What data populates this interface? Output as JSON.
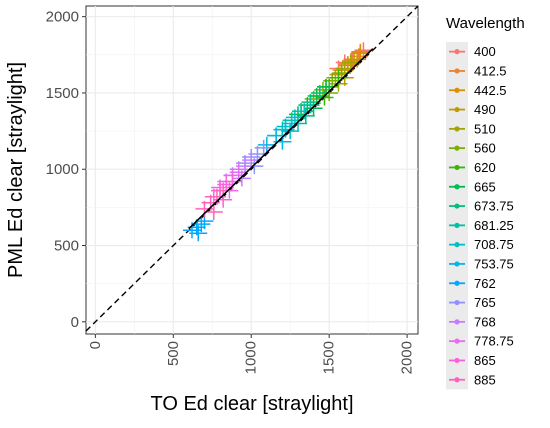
{
  "chart_data": {
    "type": "scatter",
    "xlabel": "TO Ed clear [straylight]",
    "ylabel": "PML Ed  clear [straylight]",
    "xlim": [
      -60,
      2070
    ],
    "ylim": [
      -80,
      2070
    ],
    "x_ticks": [
      "0",
      "500",
      "1000",
      "1500",
      "2000"
    ],
    "y_ticks": [
      "0",
      "500",
      "1000",
      "1500",
      "2000"
    ],
    "x_tick_values": [
      0,
      500,
      1000,
      1500,
      2000
    ],
    "y_tick_values": [
      0,
      500,
      1000,
      1500,
      2000
    ],
    "grid": true,
    "legend_position": "right",
    "legend_title": "Wavelength",
    "reference_line": {
      "style": "dashed",
      "x": [
        -60,
        2070
      ],
      "y": [
        -60,
        2070
      ]
    },
    "fit_line": {
      "style": "solid",
      "x": [
        600,
        1780
      ],
      "y": [
        610,
        1790
      ]
    },
    "series": [
      {
        "name": "400",
        "color": "#F8766D",
        "points": [
          [
            1600,
            1700
          ],
          [
            1650,
            1720
          ],
          [
            1700,
            1760
          ],
          [
            1560,
            1660
          ],
          [
            1720,
            1780
          ]
        ]
      },
      {
        "name": "412.5",
        "color": "#EA8331",
        "points": [
          [
            1580,
            1650
          ],
          [
            1640,
            1710
          ],
          [
            1690,
            1740
          ],
          [
            1620,
            1690
          ],
          [
            1700,
            1770
          ]
        ]
      },
      {
        "name": "442.5",
        "color": "#D89000",
        "points": [
          [
            1560,
            1620
          ],
          [
            1620,
            1680
          ],
          [
            1680,
            1720
          ],
          [
            1700,
            1760
          ],
          [
            1600,
            1650
          ]
        ]
      },
      {
        "name": "490",
        "color": "#C09B00",
        "points": [
          [
            1520,
            1580
          ],
          [
            1580,
            1630
          ],
          [
            1640,
            1700
          ],
          [
            1660,
            1720
          ],
          [
            1600,
            1600
          ]
        ]
      },
      {
        "name": "510",
        "color": "#A3A500",
        "points": [
          [
            1480,
            1540
          ],
          [
            1540,
            1600
          ],
          [
            1600,
            1660
          ],
          [
            1640,
            1700
          ],
          [
            1560,
            1560
          ]
        ]
      },
      {
        "name": "560",
        "color": "#7CAE00",
        "points": [
          [
            1400,
            1460
          ],
          [
            1460,
            1520
          ],
          [
            1520,
            1580
          ],
          [
            1580,
            1630
          ],
          [
            1500,
            1500
          ]
        ]
      },
      {
        "name": "620",
        "color": "#39B600",
        "points": [
          [
            1380,
            1420
          ],
          [
            1440,
            1480
          ],
          [
            1500,
            1540
          ],
          [
            1560,
            1600
          ],
          [
            1470,
            1470
          ]
        ]
      },
      {
        "name": "665",
        "color": "#00BB4E",
        "points": [
          [
            1300,
            1360
          ],
          [
            1360,
            1420
          ],
          [
            1420,
            1480
          ],
          [
            1480,
            1540
          ],
          [
            1400,
            1400
          ]
        ]
      },
      {
        "name": "673.75",
        "color": "#00BF7D",
        "points": [
          [
            1260,
            1320
          ],
          [
            1320,
            1380
          ],
          [
            1380,
            1440
          ],
          [
            1440,
            1500
          ],
          [
            1350,
            1350
          ]
        ]
      },
      {
        "name": "681.25",
        "color": "#00C1A3",
        "points": [
          [
            1200,
            1260
          ],
          [
            1260,
            1320
          ],
          [
            1320,
            1380
          ],
          [
            1380,
            1420
          ],
          [
            1300,
            1300
          ]
        ]
      },
      {
        "name": "708.75",
        "color": "#00BFC4",
        "points": [
          [
            1160,
            1220
          ],
          [
            1220,
            1280
          ],
          [
            1280,
            1340
          ],
          [
            1340,
            1380
          ],
          [
            1250,
            1250
          ]
        ]
      },
      {
        "name": "753.75",
        "color": "#00B8E7",
        "points": [
          [
            1100,
            1160
          ],
          [
            1160,
            1220
          ],
          [
            1220,
            1260
          ],
          [
            1260,
            1300
          ],
          [
            1200,
            1180
          ]
        ]
      },
      {
        "name": "762",
        "color": "#00A9FF",
        "points": [
          [
            620,
            600
          ],
          [
            650,
            620
          ],
          [
            680,
            640
          ],
          [
            700,
            660
          ],
          [
            660,
            580
          ]
        ]
      },
      {
        "name": "765",
        "color": "#8F91FF",
        "points": [
          [
            960,
            1040
          ],
          [
            1000,
            1080
          ],
          [
            1040,
            1100
          ],
          [
            1080,
            1140
          ],
          [
            1020,
            1020
          ]
        ]
      },
      {
        "name": "768",
        "color": "#C77CFF",
        "points": [
          [
            880,
            960
          ],
          [
            920,
            1000
          ],
          [
            960,
            1020
          ],
          [
            1000,
            1060
          ],
          [
            940,
            940
          ]
        ]
      },
      {
        "name": "778.75",
        "color": "#E76BF3",
        "points": [
          [
            800,
            880
          ],
          [
            840,
            920
          ],
          [
            880,
            960
          ],
          [
            920,
            980
          ],
          [
            860,
            860
          ]
        ]
      },
      {
        "name": "865",
        "color": "#FA62DB",
        "points": [
          [
            760,
            820
          ],
          [
            800,
            860
          ],
          [
            840,
            900
          ],
          [
            880,
            920
          ],
          [
            820,
            800
          ]
        ]
      },
      {
        "name": "885",
        "color": "#FF62BC",
        "points": [
          [
            700,
            740
          ],
          [
            740,
            780
          ],
          [
            780,
            820
          ],
          [
            820,
            860
          ],
          [
            760,
            720
          ]
        ]
      }
    ]
  }
}
